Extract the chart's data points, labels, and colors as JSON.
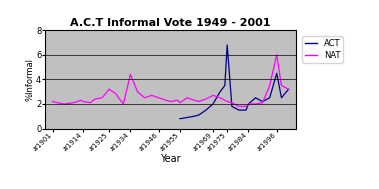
{
  "title": "A.C.T Informal Vote 1949 - 2001",
  "xlabel": "Year",
  "ylabel": "%Informal",
  "ylim": [
    0,
    8
  ],
  "yticks": [
    0,
    2,
    4,
    6,
    8
  ],
  "background_color": "#c0c0c0",
  "act_color": "#00008B",
  "nat_color": "#FF00FF",
  "years_nat": [
    1901,
    1903,
    1906,
    1910,
    1913,
    1914,
    1917,
    1919,
    1922,
    1925,
    1928,
    1929,
    1931,
    1934,
    1937,
    1940,
    1943,
    1946,
    1949,
    1951,
    1954,
    1955,
    1958,
    1961,
    1963,
    1966,
    1969,
    1972,
    1974,
    1975,
    1977,
    1980,
    1983,
    1984,
    1987,
    1990,
    1993,
    1996,
    1998,
    2001
  ],
  "values_nat": [
    2.2,
    2.1,
    2.0,
    2.1,
    2.3,
    2.2,
    2.1,
    2.4,
    2.5,
    3.2,
    2.8,
    2.5,
    2.0,
    4.4,
    3.0,
    2.5,
    2.7,
    2.5,
    2.3,
    2.2,
    2.3,
    2.1,
    2.5,
    2.3,
    2.2,
    2.4,
    2.7,
    2.5,
    2.3,
    2.2,
    2.1,
    1.8,
    1.8,
    2.0,
    2.0,
    2.1,
    3.5,
    6.0,
    3.5,
    3.2
  ],
  "years_act": [
    1955,
    1958,
    1961,
    1963,
    1966,
    1969,
    1972,
    1974,
    1975,
    1977,
    1980,
    1983,
    1984,
    1987,
    1990,
    1993,
    1996,
    1998,
    2001
  ],
  "values_act": [
    0.8,
    0.9,
    1.0,
    1.1,
    1.5,
    2.0,
    3.0,
    3.5,
    6.8,
    1.8,
    1.5,
    1.5,
    2.0,
    2.5,
    2.2,
    2.5,
    4.5,
    2.5,
    3.2
  ],
  "xtick_years": [
    1901,
    1914,
    1925,
    1934,
    1946,
    1955,
    1969,
    1975,
    1984,
    1996
  ],
  "xtick_labels": [
    "#1901",
    "#1914",
    "#1925",
    "#1934",
    "#1946",
    "#1955",
    "#1969",
    "#1975",
    "#1984",
    "#1996"
  ]
}
